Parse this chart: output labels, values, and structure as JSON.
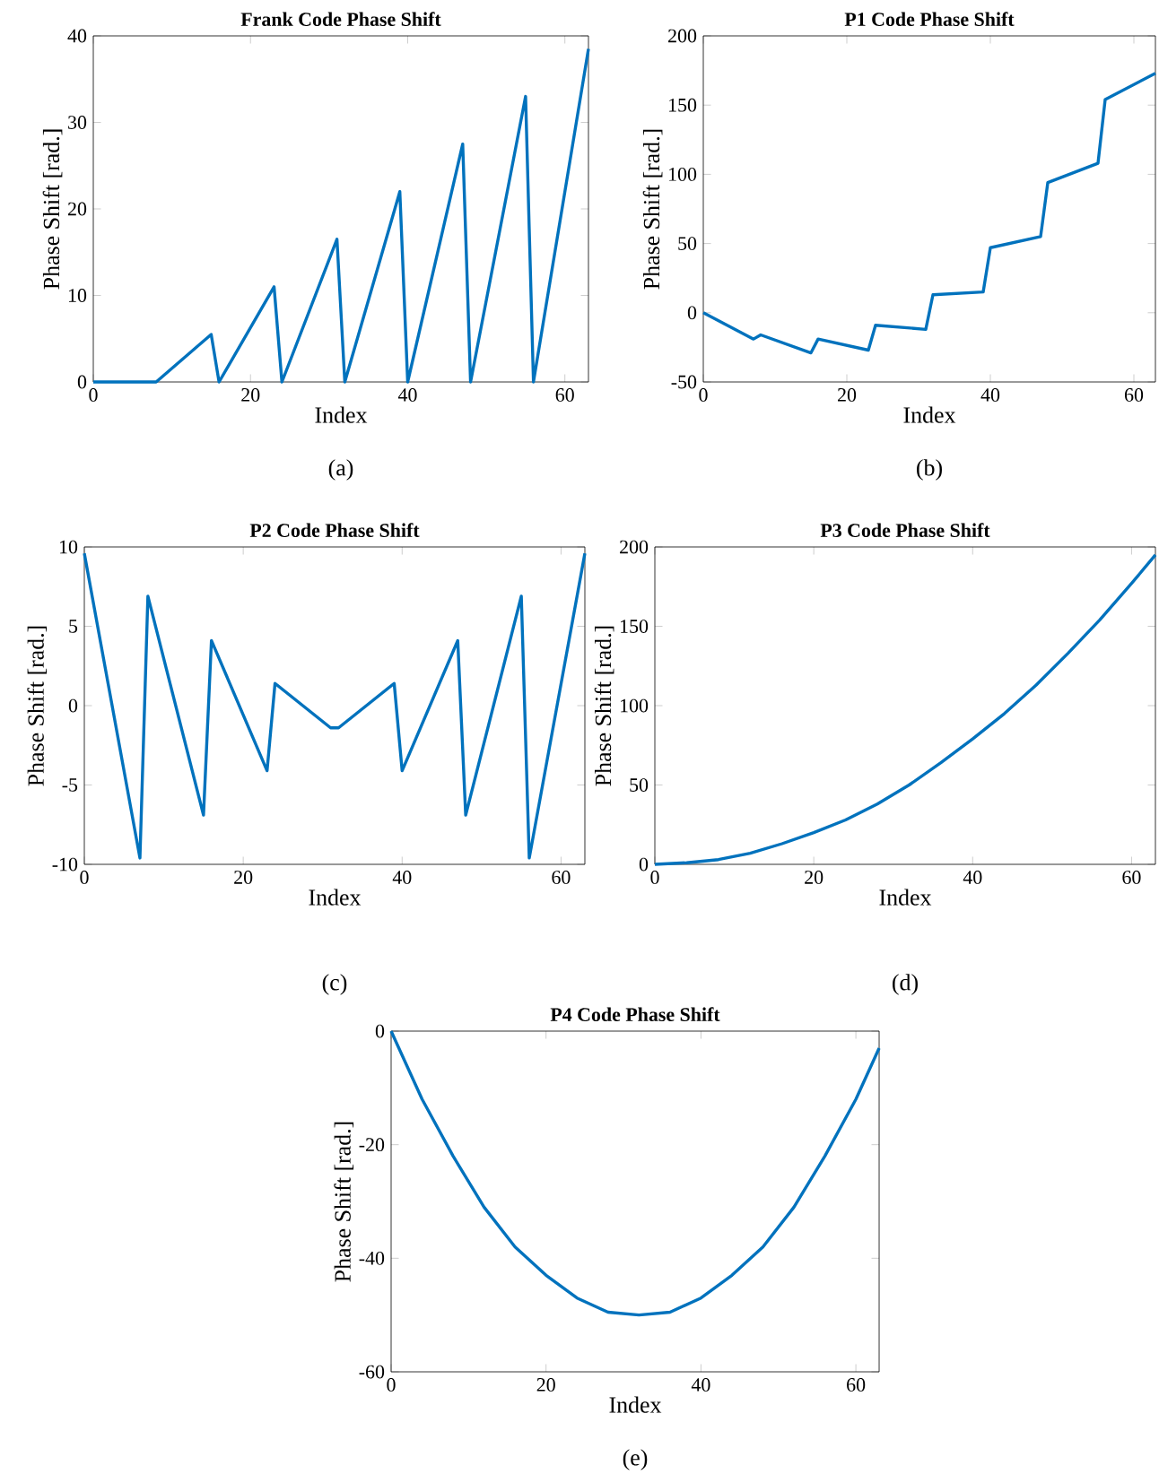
{
  "chart_data": [
    {
      "type": "line",
      "title": "Frank Code Phase Shift",
      "xlabel": "Index",
      "ylabel": "Phase Shift [rad.]",
      "annotations": [
        "(a)"
      ],
      "xlim": [
        0,
        63
      ],
      "xticks": [
        0,
        20,
        40,
        60
      ],
      "ylim": [
        0,
        40
      ],
      "yticks": [
        0,
        10,
        20,
        30,
        40
      ],
      "series": [
        {
          "color": "#0072bd",
          "x": [
            0,
            7,
            8,
            15,
            16,
            23,
            24,
            31,
            32,
            39,
            40,
            47,
            48,
            55,
            56,
            63
          ],
          "values": [
            0,
            0,
            0,
            5.5,
            0,
            11.0,
            0,
            16.5,
            0,
            22.0,
            0,
            27.5,
            0,
            33.0,
            0,
            38.5
          ]
        }
      ]
    },
    {
      "type": "line",
      "title": "P1 Code Phase Shift",
      "xlabel": "Index",
      "ylabel": "Phase Shift [rad.]",
      "annotations": [
        "(b)"
      ],
      "xlim": [
        0,
        63
      ],
      "xticks": [
        0,
        20,
        40,
        60
      ],
      "ylim": [
        -50,
        200
      ],
      "yticks": [
        -50,
        0,
        50,
        100,
        150,
        200
      ],
      "series": [
        {
          "color": "#0072bd",
          "x": [
            0,
            7,
            8,
            15,
            16,
            23,
            24,
            31,
            32,
            39,
            40,
            47,
            48,
            55,
            56,
            63
          ],
          "values": [
            0,
            -19,
            -16,
            -29,
            -19,
            -27,
            -9,
            -12,
            13,
            15,
            47,
            55,
            94,
            108,
            154,
            173
          ]
        }
      ]
    },
    {
      "type": "line",
      "title": "P2 Code Phase Shift",
      "xlabel": "Index",
      "ylabel": "Phase Shift [rad.]",
      "annotations": [
        "(c)"
      ],
      "xlim": [
        0,
        63
      ],
      "xticks": [
        0,
        20,
        40,
        60
      ],
      "ylim": [
        -10,
        10
      ],
      "yticks": [
        -10,
        -5,
        0,
        5,
        10
      ],
      "series": [
        {
          "color": "#0072bd",
          "x": [
            0,
            7,
            8,
            15,
            16,
            23,
            24,
            31,
            32,
            39,
            40,
            47,
            48,
            55,
            56,
            63
          ],
          "values": [
            9.6,
            -9.6,
            6.9,
            -6.9,
            4.1,
            -4.1,
            1.4,
            -1.4,
            -1.4,
            1.4,
            -4.1,
            4.1,
            -6.9,
            6.9,
            -9.6,
            9.6
          ]
        }
      ]
    },
    {
      "type": "line",
      "title": "P3 Code Phase Shift",
      "xlabel": "Index",
      "ylabel": "Phase Shift [rad.]",
      "annotations": [
        "(d)"
      ],
      "xlim": [
        0,
        63
      ],
      "xticks": [
        0,
        20,
        40,
        60
      ],
      "ylim": [
        0,
        200
      ],
      "yticks": [
        0,
        50,
        100,
        150,
        200
      ],
      "series": [
        {
          "color": "#0072bd",
          "x": [
            0,
            4,
            8,
            12,
            16,
            20,
            24,
            28,
            32,
            36,
            40,
            44,
            48,
            52,
            56,
            60,
            63
          ],
          "values": [
            0,
            1,
            3,
            7,
            13,
            20,
            28,
            38,
            50,
            64,
            79,
            95,
            113,
            133,
            154,
            177,
            195
          ]
        }
      ]
    },
    {
      "type": "line",
      "title": "P4 Code Phase Shift",
      "xlabel": "Index",
      "ylabel": "Phase Shift [rad.]",
      "annotations": [
        "(e)"
      ],
      "xlim": [
        0,
        63
      ],
      "xticks": [
        0,
        20,
        40,
        60
      ],
      "ylim": [
        -60,
        0
      ],
      "yticks": [
        -60,
        -40,
        -20,
        0
      ],
      "series": [
        {
          "color": "#0072bd",
          "x": [
            0,
            4,
            8,
            12,
            16,
            20,
            24,
            28,
            32,
            36,
            40,
            44,
            48,
            52,
            56,
            60,
            63
          ],
          "values": [
            0,
            -12,
            -22,
            -31,
            -38,
            -43,
            -47,
            -49.5,
            -50,
            -49.5,
            -47,
            -43,
            -38,
            -31,
            -22,
            -12,
            -3
          ]
        }
      ]
    }
  ]
}
